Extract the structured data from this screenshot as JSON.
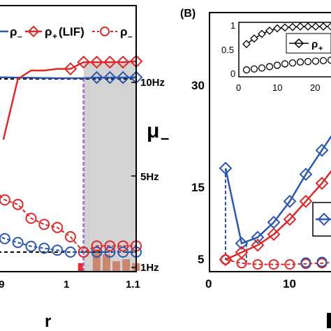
{
  "chart_data": [
    {
      "type": "line",
      "panel": "A",
      "xlabel": "r",
      "xlim": [
        0.88,
        1.1
      ],
      "x_ticks": [
        {
          "value": 0.9,
          "label": ".9"
        },
        {
          "value": 1.0,
          "label": "1"
        },
        {
          "value": 1.1,
          "label": "1.1"
        }
      ],
      "right_axis": {
        "label": "μ_",
        "ylim": [
          0,
          12
        ],
        "ticks": [
          {
            "value": 1,
            "label": "1Hz"
          },
          {
            "value": 5,
            "label": "5Hz"
          },
          {
            "value": 10,
            "label": "10Hz"
          }
        ]
      },
      "legend": [
        "ρ_",
        "ρ+ (LIF)",
        "ρ_"
      ],
      "threshold_x": 1.02,
      "reference_lines": [
        10,
        1.2
      ],
      "histogram": {
        "x": [
          1.02,
          1.035,
          1.05,
          1.065,
          1.08,
          1.095
        ],
        "values": [
          1.0,
          1.7,
          1.45,
          1.1,
          1.2,
          1.0
        ],
        "accent_value": 1.7
      },
      "series": [
        {
          "values_x": [
            0.88,
            0.9,
            0.92,
            0.94,
            0.96,
            0.98,
            1.0,
            1.02,
            1.04,
            1.06,
            1.08,
            1.1
          ],
          "values_y": [
            10.3,
            10.25,
            10.2,
            10.15,
            10.1,
            10.05,
            10.05,
            10.05,
            10.2,
            10.2,
            10.2,
            10.25
          ]
        },
        {
          "values_x": [
            0.9,
            0.92,
            0.94,
            0.96,
            0.98,
            1.0,
            1.02,
            1.04,
            1.06,
            1.08,
            1.1
          ],
          "values_y": [
            7.3,
            10.0,
            10.5,
            10.5,
            10.6,
            10.6,
            11.0,
            11.0,
            11.0,
            11.0,
            11.05
          ]
        },
        {
          "values_x": [
            0.88,
            0.9,
            0.92,
            0.94,
            0.96,
            0.98,
            1.0,
            1.02,
            1.04,
            1.06,
            1.08,
            1.1
          ],
          "values_y": [
            1.75,
            1.6,
            1.5,
            1.4,
            1.35,
            1.3,
            1.25,
            1.25,
            1.25,
            1.25,
            1.25,
            1.25
          ]
        },
        {
          "values_x": [
            0.88,
            0.9,
            0.92,
            0.94,
            0.96,
            0.98,
            1.0,
            1.02,
            1.04,
            1.06,
            1.08,
            1.1
          ],
          "values_y": [
            3.4,
            3.0,
            2.85,
            2.4,
            2.2,
            2.1,
            1.8,
            1.3,
            1.5,
            1.5,
            1.5,
            1.5
          ]
        }
      ]
    },
    {
      "type": "line",
      "panel": "B",
      "panel_label": "(B)",
      "xlim": [
        0,
        17
      ],
      "ylim": [
        3,
        34
      ],
      "x_ticks": [
        {
          "value": 0,
          "label": "0"
        },
        {
          "value": 10,
          "label": "10"
        }
      ],
      "y_ticks": [
        {
          "value": 5,
          "label": "5"
        },
        {
          "value": 15,
          "label": "15"
        },
        {
          "value": 30,
          "label": "30"
        }
      ],
      "series": [
        {
          "x": [
            2,
            4,
            6,
            8,
            10,
            12,
            14,
            16,
            18
          ],
          "y": [
            20,
            7.5,
            8.5,
            11,
            14.5,
            19,
            23,
            27,
            31
          ]
        },
        {
          "x": [
            2,
            4,
            6,
            8,
            10,
            12,
            14,
            16,
            18
          ],
          "y": [
            4.8,
            6,
            7.2,
            9,
            11.5,
            14.5,
            17.5,
            21,
            25
          ]
        },
        {
          "x": [
            2,
            4,
            6,
            8,
            10,
            12,
            14,
            16
          ],
          "y": [
            4.8,
            4.2,
            4,
            4,
            4,
            4.1,
            4.2,
            4.4
          ]
        },
        {
          "x": [
            12,
            14,
            16,
            18
          ],
          "y": [
            4.3,
            4.4,
            4.5,
            4.6
          ]
        }
      ],
      "inset": {
        "xlim": [
          0,
          25
        ],
        "ylim": [
          0,
          1
        ],
        "x_ticks": [
          {
            "value": 0,
            "label": "0"
          },
          {
            "value": 10,
            "label": "10"
          },
          {
            "value": 20,
            "label": "20"
          }
        ],
        "y_ticks": [
          {
            "value": 0,
            "label": "0"
          },
          {
            "value": 0.5,
            "label": "0.5"
          },
          {
            "value": 1,
            "label": "1"
          }
        ],
        "legend": "ρ+",
        "series": [
          {
            "x": [
              2,
              4,
              6,
              8,
              10,
              12,
              14,
              16,
              18,
              20,
              22,
              24
            ],
            "y": [
              0.62,
              0.74,
              0.84,
              0.91,
              0.96,
              0.98,
              0.99,
              1.0,
              1.0,
              1.0,
              1.0,
              1.0
            ]
          },
          {
            "x": [
              2,
              4,
              6,
              8,
              10,
              12,
              14,
              16,
              18,
              20,
              22,
              24
            ],
            "y": [
              0.06,
              0.08,
              0.1,
              0.13,
              0.16,
              0.19,
              0.21,
              0.23,
              0.24,
              0.25,
              0.26,
              0.27
            ]
          }
        ]
      }
    }
  ],
  "colors": {
    "blue": "#2c56b0",
    "red": "#dc2a2a",
    "purple": "#a07acc",
    "shade": "#d3d3d3",
    "bar": "#c8876e",
    "bar_accent": "#e82a3a"
  }
}
